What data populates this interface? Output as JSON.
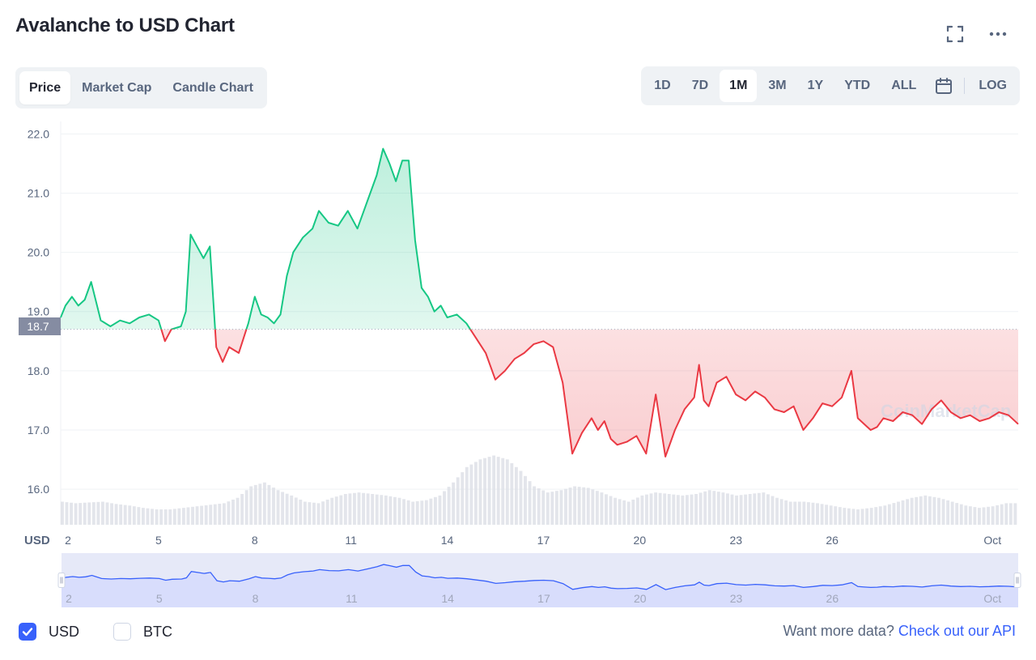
{
  "title": "Avalanche to USD Chart",
  "icons": {
    "fullscreen": "fullscreen-icon",
    "more": "more-dots-icon",
    "calendar": "calendar-icon",
    "check": "check-icon"
  },
  "tabs": [
    "Price",
    "Market Cap",
    "Candle Chart"
  ],
  "active_tab": "Price",
  "ranges": [
    "1D",
    "7D",
    "1M",
    "3M",
    "1Y",
    "YTD",
    "ALL"
  ],
  "active_range": "1M",
  "log_label": "LOG",
  "currency_label": "USD",
  "current_price_label": "18.7",
  "watermark": "CoinMarketCap",
  "colors": {
    "up": "#16c784",
    "down": "#ea3943",
    "accent": "#3861fb",
    "grid": "#eff2f5",
    "volume": "#dcdfe6"
  },
  "chart_data": {
    "type": "line",
    "ylim": [
      15.4,
      22.1
    ],
    "yticks": [
      16.0,
      17.0,
      18.0,
      19.0,
      20.0,
      21.0,
      22.0
    ],
    "reference_value": 18.7,
    "x_min": 1.95,
    "x_max": 31.8,
    "xticks": [
      {
        "label": "2",
        "value": 2
      },
      {
        "label": "5",
        "value": 5
      },
      {
        "label": "8",
        "value": 8
      },
      {
        "label": "11",
        "value": 11
      },
      {
        "label": "14",
        "value": 14
      },
      {
        "label": "17",
        "value": 17
      },
      {
        "label": "20",
        "value": 20
      },
      {
        "label": "23",
        "value": 23
      },
      {
        "label": "26",
        "value": 26
      },
      {
        "label": "Oct",
        "value": 31
      }
    ],
    "series": [
      {
        "x": [
          1.95,
          2.1,
          2.3,
          2.5,
          2.7,
          2.9,
          3.2,
          3.5,
          3.8,
          4.1,
          4.4,
          4.7,
          5.0,
          5.2,
          5.4,
          5.7,
          5.85,
          6.0,
          6.2,
          6.4,
          6.6,
          6.8,
          7.0,
          7.2,
          7.5,
          7.8,
          8.0,
          8.2,
          8.4,
          8.6,
          8.8,
          9.0,
          9.2,
          9.5,
          9.8,
          10.0,
          10.3,
          10.6,
          10.9,
          11.2,
          11.5,
          11.8,
          12.0,
          12.2,
          12.4,
          12.6,
          12.8,
          13.0,
          13.2,
          13.4,
          13.6,
          13.8,
          14.0,
          14.3,
          14.6,
          14.9,
          15.2,
          15.5,
          15.8,
          16.1,
          16.4,
          16.7,
          17.0,
          17.3,
          17.6,
          17.9,
          18.2,
          18.5,
          18.7,
          18.9,
          19.1,
          19.3,
          19.6,
          19.9,
          20.2,
          20.5,
          20.8,
          21.1,
          21.4,
          21.7,
          21.85,
          22.0,
          22.15,
          22.4,
          22.7,
          23.0,
          23.3,
          23.6,
          23.9,
          24.2,
          24.5,
          24.8,
          25.1,
          25.4,
          25.7,
          26.0,
          26.3,
          26.6,
          26.8,
          27.0,
          27.2,
          27.4,
          27.6,
          27.9,
          28.2,
          28.5,
          28.8,
          29.1,
          29.4,
          29.7,
          30.0,
          30.3,
          30.6,
          30.9,
          31.2,
          31.5,
          31.8
        ],
        "values": [
          18.9,
          19.1,
          19.25,
          19.1,
          19.2,
          19.5,
          18.85,
          18.75,
          18.85,
          18.8,
          18.9,
          18.95,
          18.85,
          18.5,
          18.7,
          18.75,
          19.0,
          20.3,
          20.1,
          19.9,
          20.1,
          18.4,
          18.15,
          18.4,
          18.3,
          18.8,
          19.25,
          18.95,
          18.9,
          18.8,
          18.95,
          19.6,
          20.0,
          20.25,
          20.4,
          20.7,
          20.5,
          20.45,
          20.7,
          20.4,
          20.85,
          21.3,
          21.75,
          21.5,
          21.2,
          21.55,
          21.55,
          20.2,
          19.4,
          19.25,
          19.0,
          19.1,
          18.9,
          18.95,
          18.8,
          18.55,
          18.3,
          17.85,
          18.0,
          18.2,
          18.3,
          18.45,
          18.5,
          18.4,
          17.8,
          16.6,
          16.95,
          17.2,
          17.0,
          17.15,
          16.85,
          16.75,
          16.8,
          16.9,
          16.6,
          17.6,
          16.55,
          17.0,
          17.35,
          17.55,
          18.1,
          17.5,
          17.4,
          17.8,
          17.9,
          17.6,
          17.5,
          17.65,
          17.55,
          17.35,
          17.3,
          17.4,
          17.0,
          17.2,
          17.45,
          17.4,
          17.55,
          18.0,
          17.2,
          17.1,
          17.0,
          17.05,
          17.2,
          17.15,
          17.3,
          17.25,
          17.1,
          17.35,
          17.5,
          17.3,
          17.2,
          17.25,
          17.15,
          17.2,
          17.3,
          17.25,
          17.1
        ]
      }
    ],
    "volume": [
      0.3,
      0.28,
      0.29,
      0.3,
      0.27,
      0.25,
      0.22,
      0.2,
      0.2,
      0.22,
      0.24,
      0.26,
      0.28,
      0.35,
      0.5,
      0.55,
      0.45,
      0.38,
      0.3,
      0.28,
      0.35,
      0.4,
      0.42,
      0.4,
      0.38,
      0.35,
      0.3,
      0.32,
      0.38,
      0.55,
      0.75,
      0.85,
      0.9,
      0.85,
      0.7,
      0.5,
      0.42,
      0.45,
      0.5,
      0.48,
      0.42,
      0.35,
      0.3,
      0.38,
      0.42,
      0.4,
      0.38,
      0.4,
      0.45,
      0.42,
      0.38,
      0.4,
      0.42,
      0.35,
      0.3,
      0.3,
      0.28,
      0.25,
      0.22,
      0.2,
      0.22,
      0.25,
      0.3,
      0.35,
      0.38,
      0.35,
      0.3,
      0.25,
      0.22,
      0.24,
      0.28
    ],
    "navigator_xticks": [
      {
        "label": "2",
        "value": 2
      },
      {
        "label": "5",
        "value": 5
      },
      {
        "label": "8",
        "value": 8
      },
      {
        "label": "11",
        "value": 11
      },
      {
        "label": "14",
        "value": 14
      },
      {
        "label": "17",
        "value": 17
      },
      {
        "label": "20",
        "value": 20
      },
      {
        "label": "23",
        "value": 23
      },
      {
        "label": "26",
        "value": 26
      },
      {
        "label": "Oct",
        "value": 31
      }
    ]
  },
  "footer": {
    "usd_label": "USD",
    "btc_label": "BTC",
    "usd_checked": true,
    "btc_checked": false,
    "more_data_text": "Want more data?",
    "api_link_text": "Check out our API"
  }
}
